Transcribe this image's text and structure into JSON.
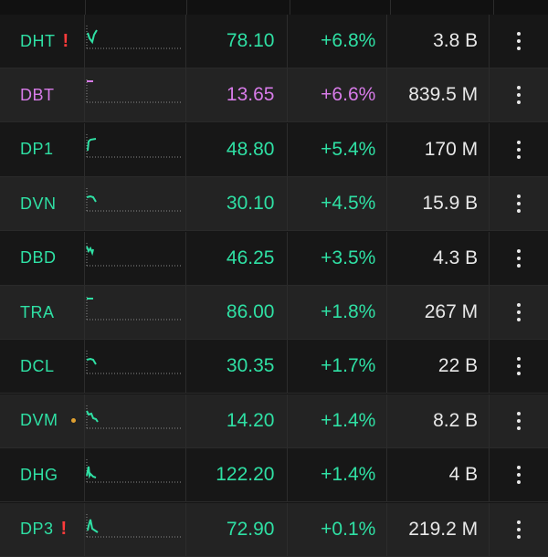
{
  "colors": {
    "up": "#2fe0a4",
    "ceiling": "#d77be8",
    "background": "#171717",
    "row_alt": "#232323",
    "flag": "#ff3b3b",
    "dot": "#e0a030",
    "volume_text": "#e8e8e8"
  },
  "rows": [
    {
      "symbol": "DHT",
      "price": "78.10",
      "change": "+6.8%",
      "volume": "3.8 B",
      "color": "up",
      "flag": "!",
      "dot": false,
      "spark": "check"
    },
    {
      "symbol": "DBT",
      "price": "13.65",
      "change": "+6.6%",
      "volume": "839.5 M",
      "color": "ceiling",
      "flag": "",
      "dot": false,
      "spark": "dash"
    },
    {
      "symbol": "DP1",
      "price": "48.80",
      "change": "+5.4%",
      "volume": "170 M",
      "color": "up",
      "flag": "",
      "dot": false,
      "spark": "step"
    },
    {
      "symbol": "DVN",
      "price": "30.10",
      "change": "+4.5%",
      "volume": "15.9 B",
      "color": "up",
      "flag": "",
      "dot": false,
      "spark": "hook"
    },
    {
      "symbol": "DBD",
      "price": "46.25",
      "change": "+3.5%",
      "volume": "4.3 B",
      "color": "up",
      "flag": "",
      "dot": false,
      "spark": "wave"
    },
    {
      "symbol": "TRA",
      "price": "86.00",
      "change": "+1.8%",
      "volume": "267 M",
      "color": "up",
      "flag": "",
      "dot": false,
      "spark": "dash"
    },
    {
      "symbol": "DCL",
      "price": "30.35",
      "change": "+1.7%",
      "volume": "22 B",
      "color": "up",
      "flag": "",
      "dot": false,
      "spark": "hook"
    },
    {
      "symbol": "DVM",
      "price": "14.20",
      "change": "+1.4%",
      "volume": "8.2 B",
      "color": "up",
      "flag": "",
      "dot": true,
      "spark": "stair"
    },
    {
      "symbol": "DHG",
      "price": "122.20",
      "change": "+1.4%",
      "volume": "4 B",
      "color": "up",
      "flag": "",
      "dot": false,
      "spark": "spike"
    },
    {
      "symbol": "DP3",
      "price": "72.90",
      "change": "+0.1%",
      "volume": "219.2 M",
      "color": "up",
      "flag": "!",
      "dot": false,
      "spark": "peak"
    }
  ]
}
